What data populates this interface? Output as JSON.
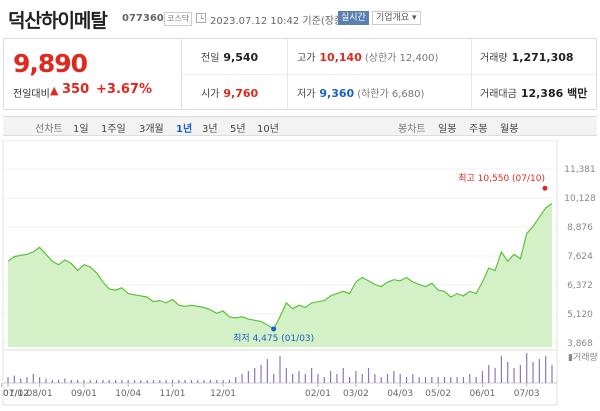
{
  "header": {
    "name": "덕산하이메탈",
    "code": "077360",
    "market": "코스닥",
    "timestamp": "2023.07.12 10:42 기준(장중)",
    "realtime_label": "실시간",
    "company_info_label": "기업개요 ▾"
  },
  "price": {
    "current": "9,890",
    "change_label": "전일대비",
    "change_arrow": "▲",
    "change_amount": "350",
    "change_percent": "+3.67%"
  },
  "stats": {
    "prev_close": {
      "label": "전일",
      "value": "9,540"
    },
    "open": {
      "label": "시가",
      "value": "9,760"
    },
    "high": {
      "label": "고가",
      "value": "10,140",
      "sub": "(상한가 12,400)"
    },
    "low": {
      "label": "저가",
      "value": "9,360",
      "sub": "(하한가 6,680)"
    },
    "volume": {
      "label": "거래량",
      "value": "1,271,308"
    },
    "amount": {
      "label": "거래대금",
      "value": "12,386 백만"
    }
  },
  "tabs": {
    "line_chart": "선차트",
    "periods": [
      "1일",
      "1주일",
      "3개월",
      "1년",
      "3년",
      "5년",
      "10년"
    ],
    "active_period": "1년",
    "candle_chart": "봉차트",
    "candle_periods": [
      "일봉",
      "주봉",
      "월봉"
    ]
  },
  "colors": {
    "up": "#e0281e",
    "down": "#1a60c9",
    "line": "#5cc23c",
    "fill": "#cfeec1",
    "volume": "#8a78b8"
  },
  "chart_data": {
    "type": "area",
    "x": [
      "07/12",
      "07/15",
      "07/20",
      "07/25",
      "07/29",
      "08/01",
      "08/05",
      "08/10",
      "08/15",
      "08/19",
      "08/24",
      "08/29",
      "09/01",
      "09/06",
      "09/12",
      "09/16",
      "09/21",
      "09/26",
      "09/30",
      "10/04",
      "10/07",
      "10/12",
      "10/17",
      "10/20",
      "10/25",
      "10/28",
      "11/01",
      "11/04",
      "11/09",
      "11/14",
      "11/17",
      "11/22",
      "11/25",
      "11/29",
      "12/01",
      "12/06",
      "12/09",
      "12/14",
      "12/19",
      "12/22",
      "12/27",
      "12/30",
      "01/03",
      "01/06",
      "01/11",
      "01/16",
      "01/20",
      "01/26",
      "01/31",
      "02/01",
      "02/06",
      "02/10",
      "02/15",
      "02/20",
      "02/24",
      "03/02",
      "03/07",
      "03/10",
      "03/15",
      "03/20",
      "03/24",
      "03/29",
      "04/03",
      "04/07",
      "04/12",
      "04/17",
      "04/21",
      "04/26",
      "05/02",
      "05/08",
      "05/12",
      "05/17",
      "05/22",
      "05/26",
      "05/31",
      "06/01",
      "06/05",
      "06/09",
      "06/14",
      "06/19",
      "06/23",
      "06/28",
      "07/03",
      "07/05",
      "07/07",
      "07/10",
      "07/12"
    ],
    "y": [
      7400,
      7600,
      7650,
      7700,
      7800,
      8000,
      7700,
      7400,
      7250,
      7450,
      7300,
      7000,
      7250,
      7150,
      6900,
      6500,
      6200,
      6150,
      6250,
      6000,
      5950,
      5900,
      5850,
      5650,
      5700,
      5600,
      5750,
      5500,
      5450,
      5500,
      5450,
      5400,
      5300,
      5150,
      5250,
      5000,
      4950,
      5000,
      4900,
      4850,
      4800,
      4650,
      4475,
      5000,
      5600,
      5350,
      5500,
      5400,
      5600,
      5650,
      5700,
      5900,
      6000,
      6100,
      6000,
      6500,
      6700,
      6550,
      6400,
      6300,
      6500,
      6600,
      6550,
      6700,
      6500,
      6400,
      6300,
      6450,
      6150,
      6100,
      5850,
      6000,
      5900,
      6100,
      6000,
      6500,
      7100,
      7000,
      7800,
      7400,
      7700,
      7500,
      8600,
      8900,
      9300,
      9700,
      9890
    ],
    "high": {
      "label": "최고 10,550 (07/10)",
      "value": 10550
    },
    "low": {
      "label": "최저 4,475 (01/03)",
      "value": 4475
    },
    "ylim": [
      3868,
      11381
    ],
    "y_ticks": [
      "11,381",
      "10,128",
      "8,876",
      "7,624",
      "6,372",
      "5,120",
      "3,868"
    ],
    "x_ticks": [
      "07/12",
      "08/01",
      "09/01",
      "10/04",
      "11/01",
      "12/01",
      "01/02",
      "02/01",
      "03/02",
      "04/03",
      "05/02",
      "06/01",
      "07/03"
    ],
    "volume_label": "▮거래량"
  }
}
